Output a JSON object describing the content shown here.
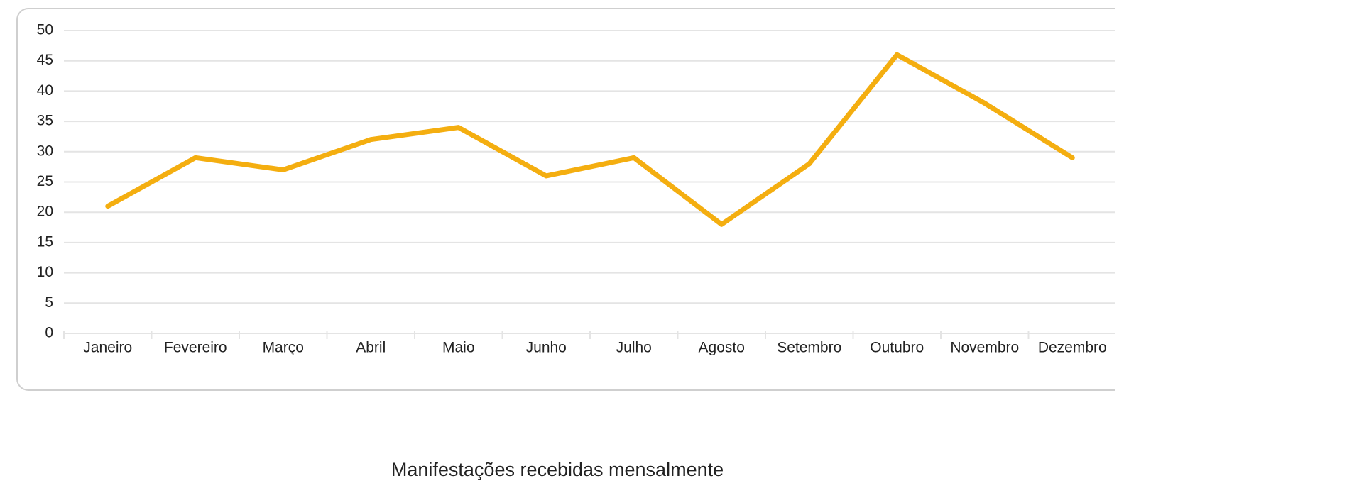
{
  "chart_data": {
    "type": "line",
    "title": "Manifestações recebidas mensalmente",
    "categories": [
      "Janeiro",
      "Fevereiro",
      "Março",
      "Abril",
      "Maio",
      "Junho",
      "Julho",
      "Agosto",
      "Setembro",
      "Outubro",
      "Novembro",
      "Dezembro"
    ],
    "series": [
      {
        "color": "#f4ae10",
        "values": [
          21,
          29,
          27,
          32,
          34,
          26,
          29,
          18,
          28,
          46,
          38,
          29
        ]
      }
    ],
    "ylim": [
      0,
      50
    ],
    "yticks": [
      0,
      5,
      10,
      15,
      20,
      25,
      30,
      35,
      40,
      45,
      50
    ],
    "grid": true
  }
}
